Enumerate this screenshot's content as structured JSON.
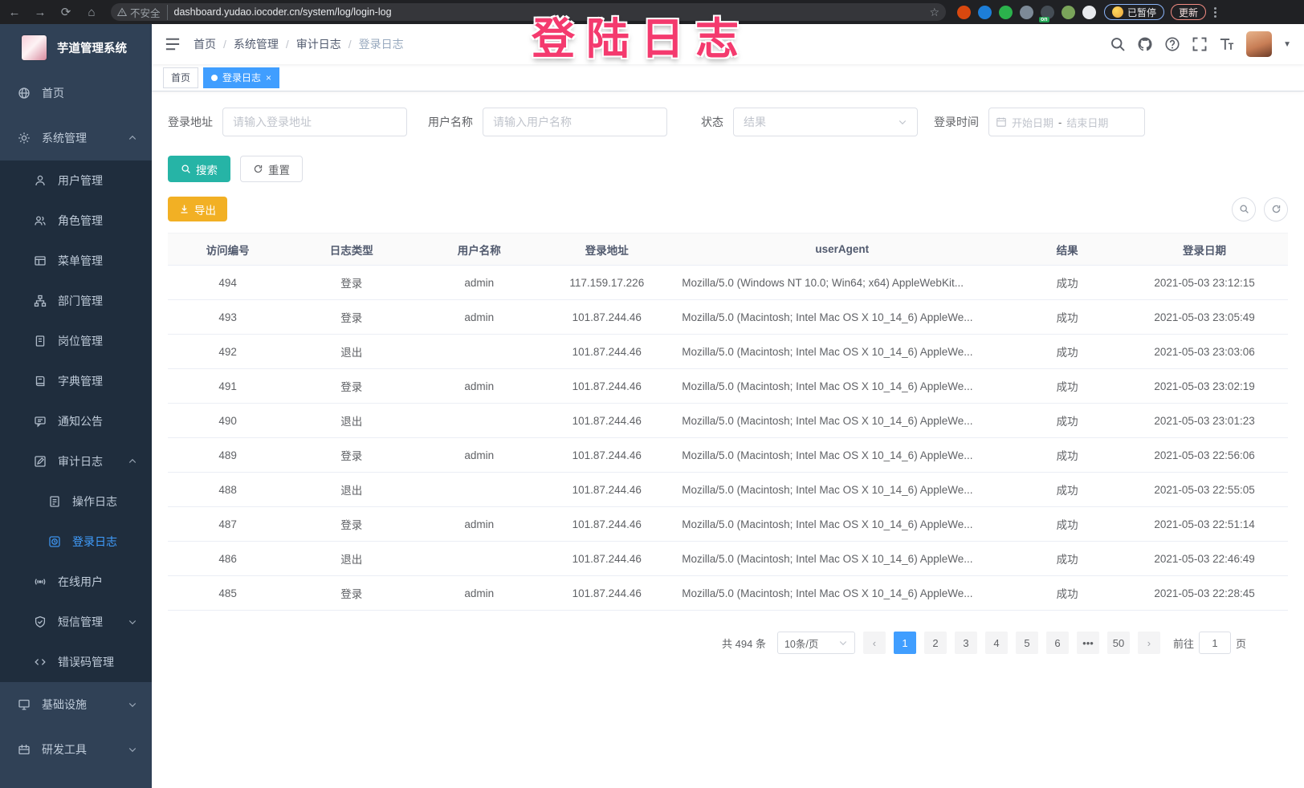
{
  "overlay": {
    "annotation": "登陆日志",
    "color": "#f43a6e"
  },
  "browser": {
    "security_label": "不安全",
    "url": "dashboard.yudao.iocoder.cn/system/log/login-log",
    "paused_label": "已暂停",
    "update_label": "更新",
    "extensions": [
      {
        "name": "orange-ring-extension-icon",
        "color": "#d9480f"
      },
      {
        "name": "blue-gem-extension-icon",
        "color": "#1d7ed8"
      },
      {
        "name": "green-circle-extension-icon",
        "color": "#2bb24c"
      },
      {
        "name": "grid-extension-icon",
        "color": "#7d8a97"
      },
      {
        "name": "list-extension-icon",
        "color": "#454d55",
        "badge": "on"
      },
      {
        "name": "leaf-extension-icon",
        "color": "#7aa45a"
      },
      {
        "name": "puzzle-extension-icon",
        "color": "#e8eaed"
      }
    ]
  },
  "sidebar": {
    "title": "芋道管理系统",
    "items": [
      {
        "label": "首页",
        "icon": "dashboard-icon",
        "level": 0
      },
      {
        "label": "系统管理",
        "icon": "gear-icon",
        "level": 0,
        "chevron": "up"
      },
      {
        "label": "用户管理",
        "icon": "user-icon",
        "level": 1
      },
      {
        "label": "角色管理",
        "icon": "users-icon",
        "level": 1
      },
      {
        "label": "菜单管理",
        "icon": "menu-table-icon",
        "level": 1
      },
      {
        "label": "部门管理",
        "icon": "org-tree-icon",
        "level": 1
      },
      {
        "label": "岗位管理",
        "icon": "post-icon",
        "level": 1
      },
      {
        "label": "字典管理",
        "icon": "dict-icon",
        "level": 1
      },
      {
        "label": "通知公告",
        "icon": "notice-icon",
        "level": 1
      },
      {
        "label": "审计日志",
        "icon": "audit-icon",
        "level": 1,
        "chevron": "up"
      },
      {
        "label": "操作日志",
        "icon": "doc-icon",
        "level": 2
      },
      {
        "label": "登录日志",
        "icon": "login-log-icon",
        "level": 2,
        "active": true
      },
      {
        "label": "在线用户",
        "icon": "online-icon",
        "level": 1
      },
      {
        "label": "短信管理",
        "icon": "sms-icon",
        "level": 1,
        "chevron": "down"
      },
      {
        "label": "错误码管理",
        "icon": "code-icon",
        "level": 1
      },
      {
        "label": "基础设施",
        "icon": "infra-icon",
        "level": 0,
        "chevron": "down"
      },
      {
        "label": "研发工具",
        "icon": "devtools-icon",
        "level": 0,
        "chevron": "down"
      }
    ]
  },
  "breadcrumb": [
    "首页",
    "系统管理",
    "审计日志",
    "登录日志"
  ],
  "tags": [
    {
      "label": "首页",
      "active": false
    },
    {
      "label": "登录日志",
      "active": true
    }
  ],
  "filters": {
    "address_label": "登录地址",
    "address_placeholder": "请输入登录地址",
    "username_label": "用户名称",
    "username_placeholder": "请输入用户名称",
    "status_label": "状态",
    "status_placeholder": "结果",
    "time_label": "登录时间",
    "start_placeholder": "开始日期",
    "range_separator": "-",
    "end_placeholder": "结束日期",
    "search_label": "搜索",
    "reset_label": "重置",
    "export_label": "导出"
  },
  "table": {
    "columns": [
      "访问编号",
      "日志类型",
      "用户名称",
      "登录地址",
      "userAgent",
      "结果",
      "登录日期"
    ],
    "rows": [
      {
        "id": "494",
        "type": "登录",
        "user": "admin",
        "ip": "117.159.17.226",
        "agent": "Mozilla/5.0 (Windows NT 10.0; Win64; x64) AppleWebKit...",
        "result": "成功",
        "date": "2021-05-03 23:12:15"
      },
      {
        "id": "493",
        "type": "登录",
        "user": "admin",
        "ip": "101.87.244.46",
        "agent": "Mozilla/5.0 (Macintosh; Intel Mac OS X 10_14_6) AppleWe...",
        "result": "成功",
        "date": "2021-05-03 23:05:49"
      },
      {
        "id": "492",
        "type": "退出",
        "user": "",
        "ip": "101.87.244.46",
        "agent": "Mozilla/5.0 (Macintosh; Intel Mac OS X 10_14_6) AppleWe...",
        "result": "成功",
        "date": "2021-05-03 23:03:06"
      },
      {
        "id": "491",
        "type": "登录",
        "user": "admin",
        "ip": "101.87.244.46",
        "agent": "Mozilla/5.0 (Macintosh; Intel Mac OS X 10_14_6) AppleWe...",
        "result": "成功",
        "date": "2021-05-03 23:02:19"
      },
      {
        "id": "490",
        "type": "退出",
        "user": "",
        "ip": "101.87.244.46",
        "agent": "Mozilla/5.0 (Macintosh; Intel Mac OS X 10_14_6) AppleWe...",
        "result": "成功",
        "date": "2021-05-03 23:01:23"
      },
      {
        "id": "489",
        "type": "登录",
        "user": "admin",
        "ip": "101.87.244.46",
        "agent": "Mozilla/5.0 (Macintosh; Intel Mac OS X 10_14_6) AppleWe...",
        "result": "成功",
        "date": "2021-05-03 22:56:06"
      },
      {
        "id": "488",
        "type": "退出",
        "user": "",
        "ip": "101.87.244.46",
        "agent": "Mozilla/5.0 (Macintosh; Intel Mac OS X 10_14_6) AppleWe...",
        "result": "成功",
        "date": "2021-05-03 22:55:05"
      },
      {
        "id": "487",
        "type": "登录",
        "user": "admin",
        "ip": "101.87.244.46",
        "agent": "Mozilla/5.0 (Macintosh; Intel Mac OS X 10_14_6) AppleWe...",
        "result": "成功",
        "date": "2021-05-03 22:51:14"
      },
      {
        "id": "486",
        "type": "退出",
        "user": "",
        "ip": "101.87.244.46",
        "agent": "Mozilla/5.0 (Macintosh; Intel Mac OS X 10_14_6) AppleWe...",
        "result": "成功",
        "date": "2021-05-03 22:46:49"
      },
      {
        "id": "485",
        "type": "登录",
        "user": "admin",
        "ip": "101.87.244.46",
        "agent": "Mozilla/5.0 (Macintosh; Intel Mac OS X 10_14_6) AppleWe...",
        "result": "成功",
        "date": "2021-05-03 22:28:45"
      }
    ]
  },
  "pagination": {
    "total_label": "共 494 条",
    "page_size": "10条/页",
    "pages": [
      "1",
      "2",
      "3",
      "4",
      "5",
      "6",
      "•••",
      "50"
    ],
    "active_page": "1",
    "goto_label": "前往",
    "goto_value": "1",
    "page_unit": "页"
  },
  "colors": {
    "accent": "#409EFF",
    "search_button": "#26b4a6",
    "export_button": "#f2b024",
    "sidebar_bg": "#304156",
    "submenu_bg": "#1f2d3d"
  }
}
